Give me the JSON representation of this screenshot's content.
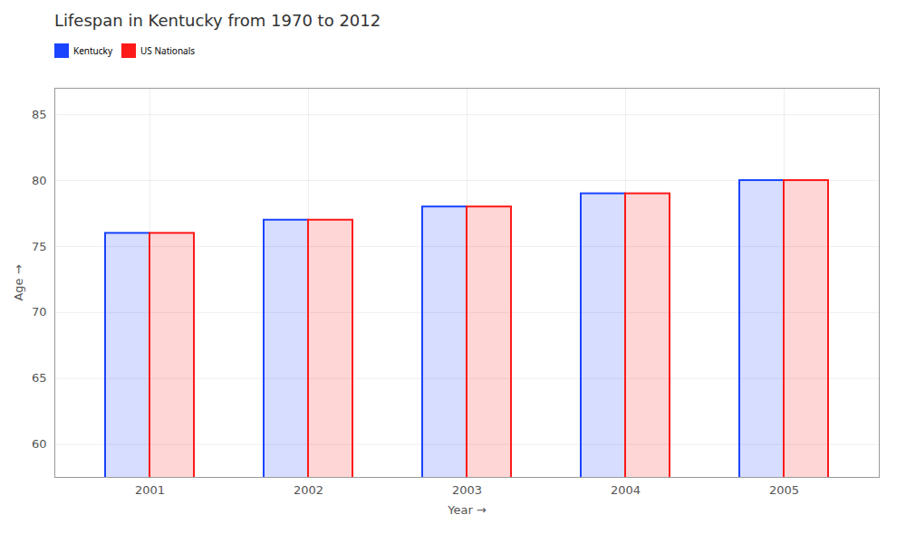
{
  "chart_data": {
    "type": "bar",
    "title": "Lifespan in Kentucky from 1970 to 2012",
    "xlabel": "Year",
    "ylabel": "Age",
    "categories": [
      "2001",
      "2002",
      "2003",
      "2004",
      "2005"
    ],
    "series": [
      {
        "name": "Kentucky",
        "color": "#1a44ff",
        "values": [
          76,
          77,
          78,
          79,
          80
        ]
      },
      {
        "name": "US Nationals",
        "color": "#ff1a1a",
        "values": [
          76,
          77,
          78,
          79,
          80
        ]
      }
    ],
    "ylim": [
      57.5,
      87
    ],
    "yticks": [
      60,
      65,
      70,
      75,
      80,
      85
    ],
    "grid": true,
    "legend": "top"
  }
}
